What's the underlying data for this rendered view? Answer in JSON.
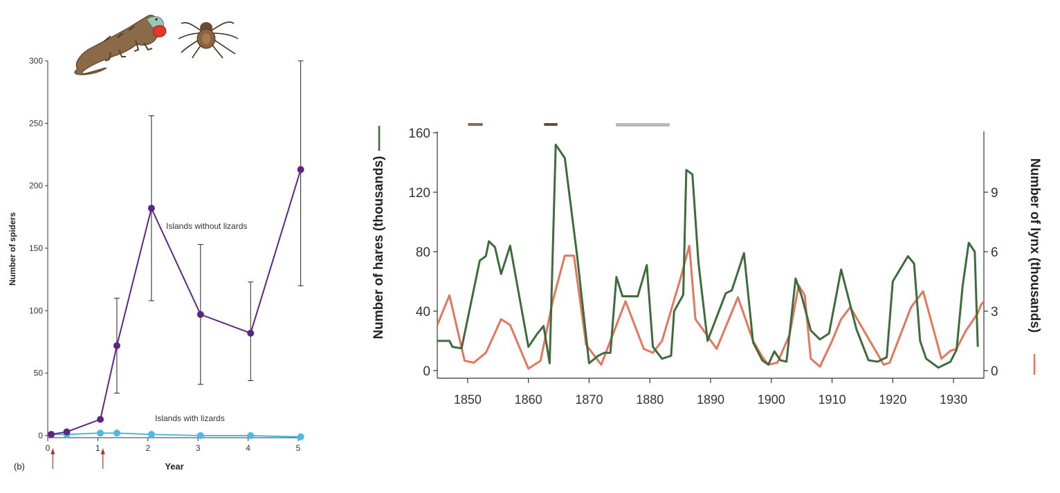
{
  "colors": {
    "purple": "#5e2483",
    "blue": "#4fb9e3",
    "hare": "#3d6b3a",
    "lynx": "#e3765c",
    "axis": "#333333",
    "arrow": "#b8322c"
  },
  "icons": {
    "lizard": "lizard-illustration",
    "spider": "spider-illustration"
  },
  "chart_data": [
    {
      "type": "line",
      "panel_label": "(b)",
      "xlabel": "Year",
      "ylabel": "Number of spiders",
      "xlim": [
        0,
        5
      ],
      "ylim": [
        0,
        300
      ],
      "x_ticks": [
        {
          "value": 0,
          "label": "0"
        },
        {
          "value": 1,
          "label": "1"
        },
        {
          "value": 2,
          "label": "2"
        },
        {
          "value": 3,
          "label": "3"
        },
        {
          "value": 4,
          "label": "4"
        },
        {
          "value": 5,
          "label": "5"
        }
      ],
      "y_ticks": [
        {
          "value": 0,
          "label": "0"
        },
        {
          "value": 50,
          "label": "50"
        },
        {
          "value": 100,
          "label": "100"
        },
        {
          "value": 150,
          "label": "150"
        },
        {
          "value": 200,
          "label": "200"
        },
        {
          "value": 250,
          "label": "250"
        },
        {
          "value": 300,
          "label": "300"
        }
      ],
      "arrow_years": [
        0.17,
        1.17
      ],
      "series": [
        {
          "name": "Islands without lizards",
          "color_key": "purple",
          "x": [
            0.07,
            0.38,
            1.05,
            1.38,
            2.07,
            3.05,
            4.05,
            5.05
          ],
          "values": [
            1,
            3,
            13,
            72,
            182,
            97,
            82,
            213
          ],
          "error_low": [
            null,
            null,
            null,
            34,
            108,
            41,
            44,
            120
          ],
          "error_high": [
            null,
            null,
            null,
            110,
            256,
            153,
            123,
            300
          ]
        },
        {
          "name": "Islands with lizards",
          "color_key": "blue",
          "x": [
            0.07,
            0.38,
            1.05,
            1.38,
            2.07,
            3.05,
            4.05,
            5.05
          ],
          "values": [
            1,
            1,
            2,
            2,
            1,
            0,
            0,
            -1
          ]
        }
      ]
    },
    {
      "type": "line",
      "xlabel": "",
      "ylabel_left": "Number of hares (thousands)",
      "ylabel_right": "Number of lynx (thousands)",
      "xlim": [
        1845,
        1935
      ],
      "ylim_left": [
        0,
        160
      ],
      "ylim_right": [
        0,
        12
      ],
      "x_ticks": [
        {
          "value": 1850,
          "label": "1850"
        },
        {
          "value": 1860,
          "label": "1860"
        },
        {
          "value": 1870,
          "label": "1870"
        },
        {
          "value": 1880,
          "label": "1880"
        },
        {
          "value": 1890,
          "label": "1890"
        },
        {
          "value": 1900,
          "label": "1900"
        },
        {
          "value": 1910,
          "label": "1910"
        },
        {
          "value": 1920,
          "label": "1920"
        },
        {
          "value": 1930,
          "label": "1930"
        }
      ],
      "y_ticks_left": [
        {
          "value": 0,
          "label": "0"
        },
        {
          "value": 40,
          "label": "40"
        },
        {
          "value": 80,
          "label": "80"
        },
        {
          "value": 120,
          "label": "120"
        },
        {
          "value": 160,
          "label": "160"
        }
      ],
      "y_ticks_right": [
        {
          "value": 0,
          "label": "0"
        },
        {
          "value": 3,
          "label": "3"
        },
        {
          "value": 6,
          "label": "6"
        },
        {
          "value": 9,
          "label": "9"
        }
      ],
      "series": [
        {
          "name": "Hares",
          "axis": "left",
          "color_key": "hare",
          "x": [
            1845,
            1847,
            1847.5,
            1849,
            1852,
            1853,
            1853.5,
            1854.5,
            1855.5,
            1857,
            1860,
            1861.5,
            1862.5,
            1863.5,
            1864.5,
            1866,
            1868,
            1870,
            1871.5,
            1872.5,
            1873.5,
            1874.5,
            1875.5,
            1878,
            1879.5,
            1880.5,
            1882,
            1883.5,
            1884,
            1885.5,
            1886,
            1887,
            1888,
            1889.5,
            1892.5,
            1893.5,
            1895.5,
            1897,
            1898.5,
            1899.5,
            1900.5,
            1901.5,
            1902.5,
            1904,
            1905,
            1906.5,
            1908,
            1909.5,
            1911.5,
            1914,
            1916,
            1917.5,
            1919,
            1920,
            1922.5,
            1923.5,
            1924.5,
            1925.5,
            1927.5,
            1929.5,
            1930.5,
            1931.5,
            1932.5,
            1933.5,
            1934
          ],
          "values": [
            20,
            20,
            16,
            15,
            74,
            77,
            87,
            83,
            65,
            84,
            16,
            25,
            30,
            5,
            152,
            143,
            78,
            5,
            10,
            12,
            12,
            63,
            50,
            50,
            71,
            16,
            8,
            10,
            40,
            51,
            135,
            132,
            73,
            20,
            52,
            54,
            79,
            19,
            7,
            4,
            13,
            7,
            6,
            62,
            50,
            27,
            21,
            25,
            68,
            28,
            7,
            6,
            9,
            60,
            77,
            72,
            20,
            8,
            2,
            6,
            14,
            57,
            86,
            80,
            16
          ],
          "note": "hare values in thousands, read from left axis"
        },
        {
          "name": "Lynx",
          "axis": "right",
          "color_key": "lynx",
          "x": [
            1845,
            1847,
            1849.5,
            1851,
            1853,
            1854.5,
            1855.5,
            1857,
            1860,
            1861,
            1862,
            1864,
            1866,
            1867.5,
            1869.5,
            1872,
            1876,
            1879,
            1880.5,
            1882,
            1885,
            1886.5,
            1887.5,
            1891,
            1894.5,
            1897,
            1898.5,
            1899.5,
            1901,
            1903,
            1904.5,
            1905.5,
            1906.5,
            1908,
            1910,
            1911.5,
            1913,
            1918.5,
            1919.5,
            1923,
            1925,
            1928,
            1929.5,
            1930.5,
            1932,
            1934,
            1934.5,
            1935
          ],
          "values": [
            2.3,
            3.8,
            0.5,
            0.4,
            0.9,
            1.9,
            2.6,
            2.3,
            0.1,
            0.3,
            0.5,
            3.5,
            5.8,
            5.8,
            1.3,
            0.3,
            3.5,
            1.1,
            0.9,
            1.5,
            4.6,
            6.3,
            2.6,
            1.1,
            3.7,
            1.5,
            0.7,
            0.3,
            0.4,
            1.8,
            4.3,
            3.8,
            0.6,
            0.2,
            1.5,
            2.6,
            3.2,
            0.3,
            0.4,
            3.2,
            4.0,
            0.6,
            1.0,
            1.1,
            2.0,
            2.9,
            3.3,
            3.5
          ],
          "note": "lynx values in thousands, read from right axis"
        }
      ]
    }
  ]
}
